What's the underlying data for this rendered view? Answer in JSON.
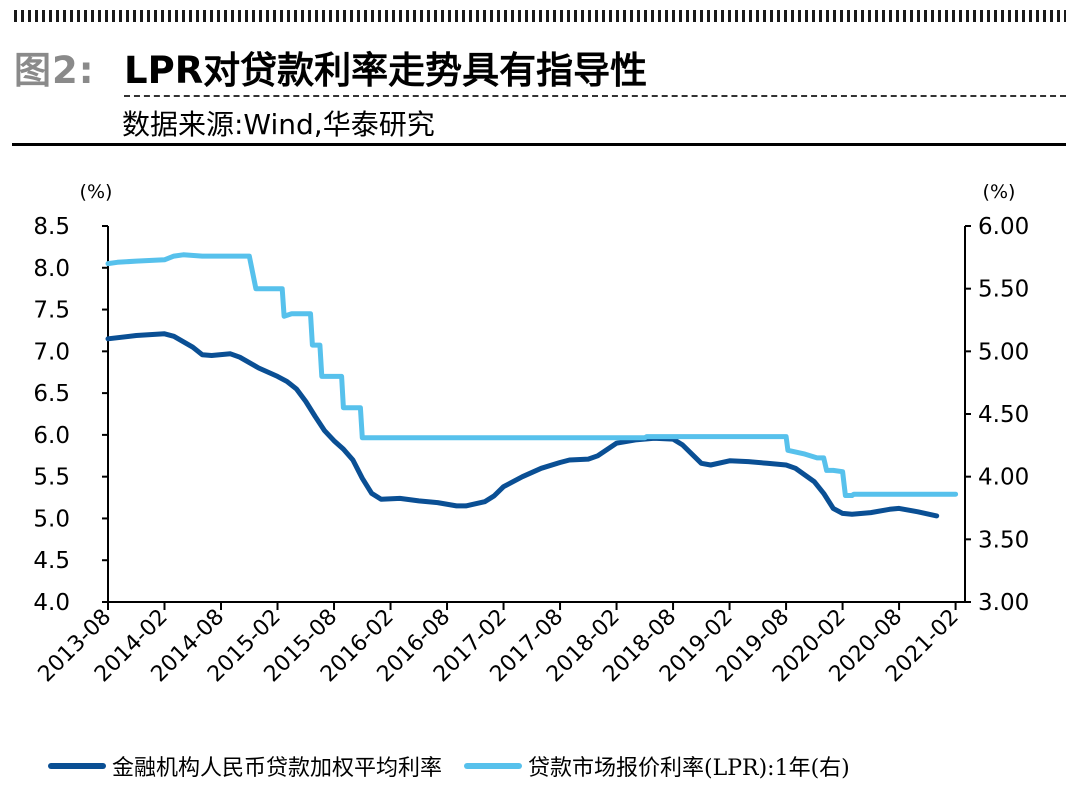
{
  "header": {
    "figure_label": "图2:",
    "title": "LPR对贷款利率走势具有指导性",
    "source": "数据来源:Wind,华泰研究"
  },
  "colors": {
    "series1": "#0a4f94",
    "series2": "#57c1ec",
    "axis": "#000000"
  },
  "chart_data": {
    "type": "line",
    "title": "LPR对贷款利率走势具有指导性",
    "left_axis": {
      "unit_label": "(%)",
      "ylim": [
        4.0,
        8.5
      ],
      "ticks": [
        4.0,
        4.5,
        5.0,
        5.5,
        6.0,
        6.5,
        7.0,
        7.5,
        8.0,
        8.5
      ],
      "decimals": 1
    },
    "right_axis": {
      "unit_label": "(%)",
      "ylim": [
        3.0,
        6.0
      ],
      "ticks": [
        3.0,
        3.5,
        4.0,
        4.5,
        5.0,
        5.5,
        6.0
      ],
      "decimals": 2
    },
    "x_axis": {
      "range_months": [
        0,
        91
      ],
      "ticks": [
        "2013-08",
        "2014-02",
        "2014-08",
        "2015-02",
        "2015-08",
        "2016-02",
        "2016-08",
        "2017-02",
        "2017-08",
        "2018-02",
        "2018-08",
        "2019-02",
        "2019-08",
        "2020-02",
        "2020-08",
        "2021-02"
      ]
    },
    "series": [
      {
        "name": "金融机构人民币贷款加权平均利率",
        "axis": "left",
        "color": "#0a4f94",
        "points": [
          [
            0,
            7.15
          ],
          [
            3,
            7.19
          ],
          [
            6,
            7.21
          ],
          [
            7,
            7.18
          ],
          [
            9,
            7.05
          ],
          [
            10,
            6.96
          ],
          [
            11,
            6.95
          ],
          [
            13,
            6.97
          ],
          [
            14,
            6.93
          ],
          [
            16,
            6.8
          ],
          [
            18,
            6.7
          ],
          [
            19,
            6.64
          ],
          [
            20,
            6.55
          ],
          [
            21,
            6.4
          ],
          [
            22,
            6.22
          ],
          [
            23,
            6.05
          ],
          [
            24,
            5.93
          ],
          [
            25,
            5.83
          ],
          [
            26,
            5.7
          ],
          [
            27,
            5.48
          ],
          [
            28,
            5.3
          ],
          [
            29,
            5.23
          ],
          [
            31,
            5.24
          ],
          [
            33,
            5.21
          ],
          [
            35,
            5.19
          ],
          [
            37,
            5.15
          ],
          [
            38,
            5.15
          ],
          [
            40,
            5.2
          ],
          [
            41,
            5.27
          ],
          [
            42,
            5.38
          ],
          [
            44,
            5.5
          ],
          [
            46,
            5.6
          ],
          [
            48,
            5.67
          ],
          [
            49,
            5.7
          ],
          [
            51,
            5.71
          ],
          [
            52,
            5.75
          ],
          [
            54,
            5.9
          ],
          [
            56,
            5.94
          ],
          [
            58,
            5.96
          ],
          [
            60,
            5.95
          ],
          [
            61,
            5.88
          ],
          [
            63,
            5.66
          ],
          [
            64,
            5.64
          ],
          [
            66,
            5.69
          ],
          [
            68,
            5.68
          ],
          [
            70,
            5.66
          ],
          [
            72,
            5.64
          ],
          [
            73,
            5.6
          ],
          [
            75,
            5.44
          ],
          [
            76,
            5.3
          ],
          [
            77,
            5.12
          ],
          [
            78,
            5.06
          ],
          [
            79,
            5.05
          ],
          [
            81,
            5.07
          ],
          [
            83,
            5.11
          ],
          [
            84,
            5.12
          ],
          [
            86,
            5.08
          ],
          [
            88,
            5.03
          ]
        ]
      },
      {
        "name": "贷款市场报价利率(LPR):1年(右)",
        "axis": "right",
        "color": "#57c1ec",
        "step": true,
        "points": [
          [
            0,
            5.7
          ],
          [
            1,
            5.71
          ],
          [
            3,
            5.72
          ],
          [
            6,
            5.73
          ],
          [
            7,
            5.76
          ],
          [
            8,
            5.77
          ],
          [
            10,
            5.76
          ],
          [
            12,
            5.76
          ],
          [
            14,
            5.76
          ],
          [
            15,
            5.76
          ],
          [
            15.7,
            5.5
          ],
          [
            18.5,
            5.5
          ],
          [
            18.7,
            5.28
          ],
          [
            19.5,
            5.3
          ],
          [
            21.5,
            5.3
          ],
          [
            21.7,
            5.05
          ],
          [
            22.5,
            5.05
          ],
          [
            22.7,
            4.8
          ],
          [
            24.8,
            4.8
          ],
          [
            25,
            4.55
          ],
          [
            26.8,
            4.55
          ],
          [
            27,
            4.31
          ],
          [
            30,
            4.31
          ],
          [
            40,
            4.31
          ],
          [
            50,
            4.31
          ],
          [
            57,
            4.31
          ],
          [
            57.2,
            4.32
          ],
          [
            65,
            4.32
          ],
          [
            72,
            4.32
          ],
          [
            72.2,
            4.21
          ],
          [
            74,
            4.18
          ],
          [
            75.3,
            4.15
          ],
          [
            76,
            4.15
          ],
          [
            76.3,
            4.05
          ],
          [
            77,
            4.05
          ],
          [
            78,
            4.04
          ],
          [
            78.3,
            3.85
          ],
          [
            79,
            3.85
          ],
          [
            79.2,
            3.86
          ],
          [
            85,
            3.86
          ],
          [
            90,
            3.86
          ]
        ]
      }
    ]
  },
  "legend": {
    "items": [
      {
        "label": "金融机构人民币贷款加权平均利率",
        "color": "#0a4f94"
      },
      {
        "label": "贷款市场报价利率(LPR):1年(右)",
        "color": "#57c1ec"
      }
    ]
  }
}
